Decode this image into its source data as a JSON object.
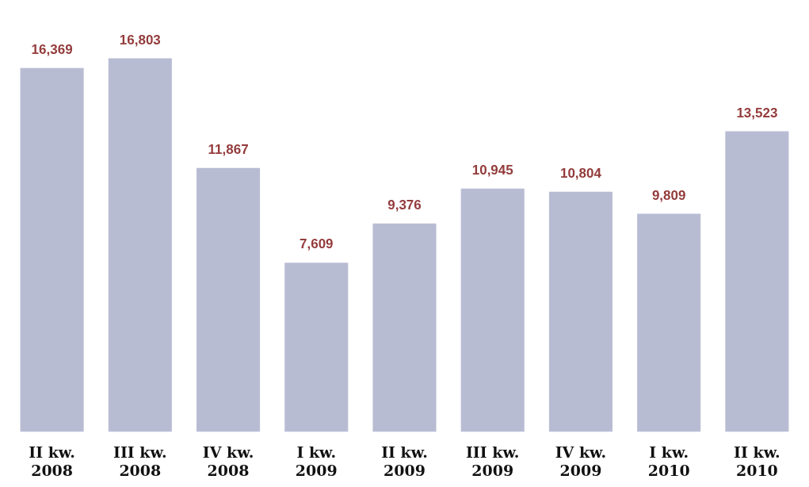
{
  "chart_data": {
    "type": "bar",
    "categories": [
      "II kw.\n2008",
      "III kw.\n2008",
      "IV kw.\n2008",
      "I kw.\n2009",
      "II kw.\n2009",
      "III kw.\n2009",
      "IV kw.\n2009",
      "I kw.\n2010",
      "II kw.\n2010"
    ],
    "values": [
      16369,
      16803,
      11867,
      7609,
      9376,
      10945,
      10804,
      9809,
      13523
    ],
    "value_labels": [
      "16,369",
      "16,803",
      "11,867",
      "7,609",
      "9,376",
      "10,945",
      "10,804",
      "9,809",
      "13,523"
    ],
    "color": "#b8bcd3",
    "grid": false,
    "legend": false
  }
}
